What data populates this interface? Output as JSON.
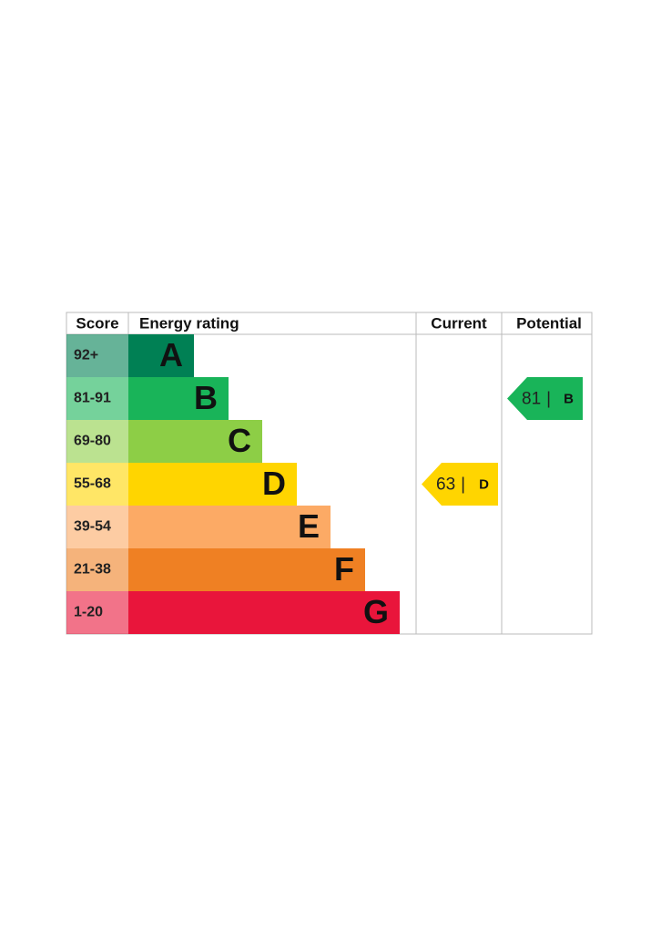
{
  "header": {
    "score": "Score",
    "rating": "Energy rating",
    "current": "Current",
    "potential": "Potential"
  },
  "rows": [
    {
      "score": "92+",
      "letter": "A",
      "color": "#008054"
    },
    {
      "score": "81-91",
      "letter": "B",
      "color": "#19b459"
    },
    {
      "score": "69-80",
      "letter": "C",
      "color": "#8dce46"
    },
    {
      "score": "55-68",
      "letter": "D",
      "color": "#ffd500"
    },
    {
      "score": "39-54",
      "letter": "E",
      "color": "#fcaa65"
    },
    {
      "score": "21-38",
      "letter": "F",
      "color": "#ef8023"
    },
    {
      "score": "1-20",
      "letter": "G",
      "color": "#e9153b"
    }
  ],
  "current": {
    "score": 63,
    "divider": "|",
    "rating": "D"
  },
  "potential": {
    "score": 81,
    "divider": "|",
    "rating": "B"
  }
}
